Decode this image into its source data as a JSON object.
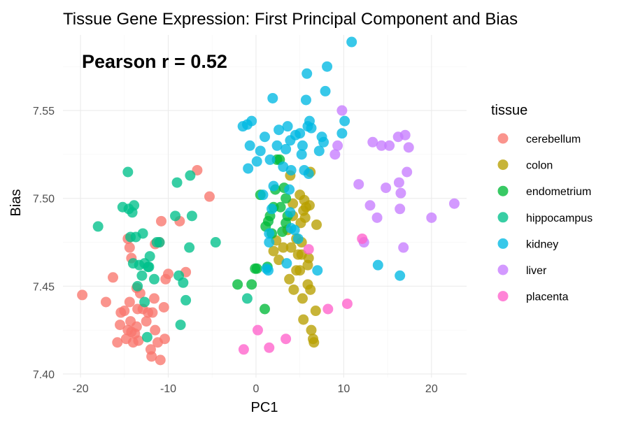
{
  "chart_data": {
    "type": "scatter",
    "title": "Tissue Gene Expression: First Principal Component and Bias",
    "annotation": "Pearson r = 0.52",
    "xlabel": "PC1",
    "ylabel": "Bias",
    "xlim": [
      -22,
      24
    ],
    "ylim": [
      7.398,
      7.593
    ],
    "x_ticks": [
      -20,
      -10,
      0,
      10,
      20
    ],
    "x_tick_labels": [
      "-20",
      "-10",
      "0",
      "10",
      "20"
    ],
    "y_ticks": [
      7.4,
      7.45,
      7.5,
      7.55
    ],
    "y_tick_labels": [
      "7.40",
      "7.45",
      "7.50",
      "7.55"
    ],
    "grid": true,
    "legend_title": "tissue",
    "legend_position": "right",
    "series": [
      {
        "name": "cerebellum",
        "color": "#F8766D",
        "points": [
          [
            -19.8,
            7.445
          ],
          [
            -17.1,
            7.441
          ],
          [
            -16.3,
            7.455
          ],
          [
            -15.8,
            7.418
          ],
          [
            -15.5,
            7.428
          ],
          [
            -15.4,
            7.435
          ],
          [
            -15.0,
            7.436
          ],
          [
            -14.8,
            7.42
          ],
          [
            -14.6,
            7.425
          ],
          [
            -14.4,
            7.441
          ],
          [
            -14.3,
            7.43
          ],
          [
            -14.2,
            7.424
          ],
          [
            -14.0,
            7.418
          ],
          [
            -13.8,
            7.423
          ],
          [
            -13.6,
            7.427
          ],
          [
            -13.5,
            7.437
          ],
          [
            -13.4,
            7.419
          ],
          [
            -13.6,
            7.449
          ],
          [
            -13.2,
            7.446
          ],
          [
            -12.9,
            7.437
          ],
          [
            -12.5,
            7.43
          ],
          [
            -12.3,
            7.435
          ],
          [
            -12.0,
            7.414
          ],
          [
            -11.9,
            7.41
          ],
          [
            -11.8,
            7.435
          ],
          [
            -11.6,
            7.443
          ],
          [
            -11.5,
            7.425
          ],
          [
            -11.2,
            7.418
          ],
          [
            -10.9,
            7.408
          ],
          [
            -10.5,
            7.438
          ],
          [
            -10.4,
            7.42
          ],
          [
            -10.3,
            7.454
          ],
          [
            -10.0,
            7.457
          ],
          [
            -11.5,
            7.474
          ],
          [
            -11.0,
            7.475
          ],
          [
            -10.8,
            7.487
          ],
          [
            -8.7,
            7.487
          ],
          [
            -8.0,
            7.458
          ],
          [
            -6.7,
            7.516
          ],
          [
            -5.3,
            7.501
          ],
          [
            -14.6,
            7.477
          ],
          [
            -14.2,
            7.466
          ],
          [
            -14.4,
            7.472
          ]
        ]
      },
      {
        "name": "colon",
        "color": "#B79F00",
        "points": [
          [
            2.0,
            7.47
          ],
          [
            2.3,
            7.476
          ],
          [
            2.6,
            7.465
          ],
          [
            3.1,
            7.472
          ],
          [
            3.6,
            7.482
          ],
          [
            3.8,
            7.454
          ],
          [
            3.9,
            7.513
          ],
          [
            4.0,
            7.472
          ],
          [
            4.2,
            7.49
          ],
          [
            4.2,
            7.497
          ],
          [
            4.3,
            7.448
          ],
          [
            4.6,
            7.477
          ],
          [
            4.8,
            7.468
          ],
          [
            5.0,
            7.459
          ],
          [
            5.2,
            7.468
          ],
          [
            5.3,
            7.443
          ],
          [
            5.1,
            7.486
          ],
          [
            5.0,
            7.502
          ],
          [
            5.4,
            7.493
          ],
          [
            5.5,
            7.499
          ],
          [
            5.6,
            7.489
          ],
          [
            5.7,
            7.495
          ],
          [
            5.9,
            7.462
          ],
          [
            5.9,
            7.451
          ],
          [
            6.0,
            7.466
          ],
          [
            6.1,
            7.496
          ],
          [
            6.2,
            7.515
          ],
          [
            6.3,
            7.425
          ],
          [
            6.5,
            7.42
          ],
          [
            6.6,
            7.418
          ],
          [
            6.8,
            7.436
          ],
          [
            6.9,
            7.485
          ],
          [
            5.2,
            7.475
          ],
          [
            5.4,
            7.431
          ],
          [
            6.2,
            7.448
          ],
          [
            4.6,
            7.459
          ]
        ]
      },
      {
        "name": "endometrium",
        "color": "#00BA38",
        "points": [
          [
            -2.1,
            7.451
          ],
          [
            -0.5,
            7.451
          ],
          [
            -0.1,
            7.46
          ],
          [
            0.1,
            7.46
          ],
          [
            0.5,
            7.502
          ],
          [
            1.0,
            7.437
          ],
          [
            1.1,
            7.484
          ],
          [
            1.3,
            7.461
          ],
          [
            1.4,
            7.487
          ],
          [
            1.6,
            7.49
          ],
          [
            1.8,
            7.48
          ],
          [
            2.0,
            7.495
          ],
          [
            2.2,
            7.505
          ],
          [
            2.4,
            7.522
          ],
          [
            2.7,
            7.522
          ],
          [
            2.8,
            7.495
          ],
          [
            3.2,
            7.506
          ],
          [
            3.4,
            7.5
          ],
          [
            3.6,
            7.49
          ],
          [
            3.4,
            7.486
          ],
          [
            3.0,
            7.481
          ]
        ]
      },
      {
        "name": "hippocampus",
        "color": "#00C08B",
        "points": [
          [
            -18.0,
            7.484
          ],
          [
            -15.2,
            7.495
          ],
          [
            -14.6,
            7.515
          ],
          [
            -14.5,
            7.494
          ],
          [
            -14.3,
            7.478
          ],
          [
            -14.1,
            7.492
          ],
          [
            -13.9,
            7.496
          ],
          [
            -13.7,
            7.478
          ],
          [
            -13.5,
            7.45
          ],
          [
            -13.3,
            7.462
          ],
          [
            -13.0,
            7.456
          ],
          [
            -12.9,
            7.48
          ],
          [
            -12.7,
            7.463
          ],
          [
            -12.4,
            7.421
          ],
          [
            -12.2,
            7.461
          ],
          [
            -12.1,
            7.467
          ],
          [
            -11.6,
            7.454
          ],
          [
            -11.3,
            7.475
          ],
          [
            -11.0,
            7.475
          ],
          [
            -9.2,
            7.49
          ],
          [
            -9.0,
            7.509
          ],
          [
            -8.8,
            7.456
          ],
          [
            -8.6,
            7.428
          ],
          [
            -8.3,
            7.452
          ],
          [
            -8.0,
            7.442
          ],
          [
            -7.6,
            7.472
          ],
          [
            -7.5,
            7.513
          ],
          [
            -7.3,
            7.49
          ],
          [
            -4.6,
            7.475
          ],
          [
            -1.0,
            7.443
          ],
          [
            -12.3,
            7.461
          ],
          [
            -12.7,
            7.441
          ],
          [
            -14.0,
            7.463
          ]
        ]
      },
      {
        "name": "kidney",
        "color": "#00B9E3",
        "points": [
          [
            -1.5,
            7.541
          ],
          [
            -1.0,
            7.542
          ],
          [
            -0.9,
            7.517
          ],
          [
            -0.7,
            7.53
          ],
          [
            -0.5,
            7.544
          ],
          [
            0.1,
            7.521
          ],
          [
            0.5,
            7.527
          ],
          [
            0.8,
            7.502
          ],
          [
            1.0,
            7.535
          ],
          [
            1.2,
            7.46
          ],
          [
            1.4,
            7.459
          ],
          [
            1.5,
            7.48
          ],
          [
            1.5,
            7.475
          ],
          [
            1.6,
            7.522
          ],
          [
            1.8,
            7.494
          ],
          [
            1.9,
            7.557
          ],
          [
            2.0,
            7.507
          ],
          [
            2.4,
            7.53
          ],
          [
            2.6,
            7.539
          ],
          [
            3.1,
            7.518
          ],
          [
            3.4,
            7.528
          ],
          [
            3.6,
            7.541
          ],
          [
            3.9,
            7.533
          ],
          [
            4.0,
            7.516
          ],
          [
            3.9,
            7.492
          ],
          [
            3.8,
            7.505
          ],
          [
            4.4,
            7.482
          ],
          [
            4.5,
            7.536
          ],
          [
            4.8,
            7.477
          ],
          [
            5.0,
            7.537
          ],
          [
            5.2,
            7.525
          ],
          [
            5.3,
            7.53
          ],
          [
            5.7,
            7.556
          ],
          [
            5.8,
            7.571
          ],
          [
            5.9,
            7.541
          ],
          [
            6.1,
            7.544
          ],
          [
            6.3,
            7.54
          ],
          [
            7.0,
            7.459
          ],
          [
            7.2,
            7.527
          ],
          [
            7.5,
            7.535
          ],
          [
            7.7,
            7.532
          ],
          [
            7.9,
            7.561
          ],
          [
            8.1,
            7.575
          ],
          [
            9.8,
            7.537
          ],
          [
            10.1,
            7.544
          ],
          [
            10.9,
            7.589
          ],
          [
            13.9,
            7.462
          ],
          [
            16.4,
            7.456
          ],
          [
            4.0,
            7.483
          ],
          [
            5.5,
            7.516
          ],
          [
            6.0,
            7.514
          ],
          [
            3.5,
            7.463
          ]
        ]
      },
      {
        "name": "liver",
        "color": "#C77CFF",
        "points": [
          [
            9.0,
            7.525
          ],
          [
            9.3,
            7.53
          ],
          [
            9.8,
            7.55
          ],
          [
            11.7,
            7.508
          ],
          [
            12.3,
            7.475
          ],
          [
            13.0,
            7.496
          ],
          [
            13.3,
            7.532
          ],
          [
            13.8,
            7.489
          ],
          [
            14.3,
            7.53
          ],
          [
            14.8,
            7.506
          ],
          [
            15.2,
            7.53
          ],
          [
            16.2,
            7.535
          ],
          [
            16.3,
            7.509
          ],
          [
            16.4,
            7.494
          ],
          [
            16.5,
            7.503
          ],
          [
            16.8,
            7.472
          ],
          [
            17.0,
            7.536
          ],
          [
            17.2,
            7.515
          ],
          [
            17.4,
            7.529
          ],
          [
            20.0,
            7.489
          ],
          [
            22.6,
            7.497
          ]
        ]
      },
      {
        "name": "placenta",
        "color": "#FF61CC",
        "points": [
          [
            -1.4,
            7.414
          ],
          [
            0.2,
            7.425
          ],
          [
            1.5,
            7.415
          ],
          [
            3.4,
            7.42
          ],
          [
            6.0,
            7.471
          ],
          [
            8.2,
            7.437
          ],
          [
            10.4,
            7.44
          ],
          [
            12.1,
            7.477
          ]
        ]
      }
    ]
  }
}
